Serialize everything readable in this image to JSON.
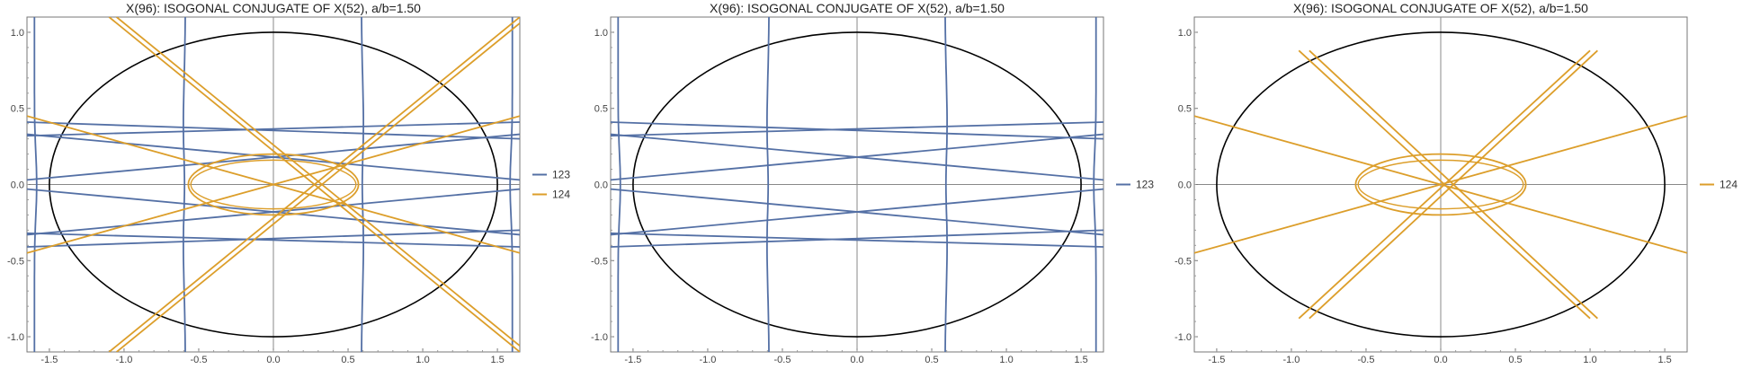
{
  "page": {
    "background": "#ffffff"
  },
  "colors": {
    "c123": "#5470a5",
    "c124": "#dc9e2a",
    "ellipse": "#000000",
    "axis": "#888888"
  },
  "chart_data": [
    {
      "type": "line",
      "title": "X(96): ISOGONAL CONJUGATE OF X(52), a/b=1.50",
      "xlabel": "",
      "ylabel": "",
      "xlim": [
        -1.65,
        1.65
      ],
      "ylim": [
        -1.1,
        1.1
      ],
      "xticks": [
        "-1.5",
        "-1.0",
        "-0.5",
        "0.0",
        "0.5",
        "1.0",
        "1.5"
      ],
      "yticks": [
        "-1.0",
        "-0.5",
        "0.0",
        "0.5",
        "1.0"
      ],
      "grid": false,
      "legend": [
        "123",
        "124"
      ],
      "legend_position": "right",
      "circumellipse": {
        "a": 1.5,
        "b": 1.0
      },
      "series": [
        {
          "name": "123",
          "color": "#5470a5",
          "vertical_curves": [
            [
              -1.6,
              0.0
            ],
            [
              -0.6,
              -0.01
            ],
            [
              0.6,
              0.01
            ],
            [
              1.6,
              0.0
            ]
          ],
          "lines": [
            [
              [
                -1.65,
                0.41
              ],
              [
                1.65,
                0.3
              ]
            ],
            [
              [
                -1.65,
                0.32
              ],
              [
                1.65,
                0.41
              ]
            ],
            [
              [
                -1.65,
                0.03
              ],
              [
                1.65,
                0.33
              ]
            ],
            [
              [
                -1.65,
                0.33
              ],
              [
                1.65,
                0.03
              ]
            ],
            [
              [
                -1.65,
                -0.41
              ],
              [
                1.65,
                -0.3
              ]
            ],
            [
              [
                -1.65,
                -0.32
              ],
              [
                1.65,
                -0.41
              ]
            ],
            [
              [
                -1.65,
                -0.03
              ],
              [
                1.65,
                -0.33
              ]
            ],
            [
              [
                -1.65,
                -0.33
              ],
              [
                1.65,
                -0.03
              ]
            ]
          ]
        },
        {
          "name": "124",
          "color": "#dc9e2a",
          "inner_ellipse": {
            "cx": 0.0,
            "cy": 0.0,
            "rx": 0.57,
            "ry": 0.2
          },
          "lines": [
            [
              [
                -1.1,
                -1.1
              ],
              [
                1.65,
                1.1
              ]
            ],
            [
              [
                -1.05,
                -1.1
              ],
              [
                1.65,
                1.06
              ]
            ],
            [
              [
                -1.1,
                1.1
              ],
              [
                1.65,
                -1.1
              ]
            ],
            [
              [
                -1.05,
                1.1
              ],
              [
                1.65,
                -1.06
              ]
            ],
            [
              [
                -1.65,
                0.45
              ],
              [
                1.65,
                -0.45
              ]
            ],
            [
              [
                -1.65,
                -0.45
              ],
              [
                1.65,
                0.45
              ]
            ]
          ]
        }
      ]
    },
    {
      "type": "line",
      "title": "X(96): ISOGONAL CONJUGATE OF X(52), a/b=1.50",
      "xlabel": "",
      "ylabel": "",
      "xlim": [
        -1.65,
        1.65
      ],
      "ylim": [
        -1.1,
        1.1
      ],
      "xticks": [
        "-1.5",
        "-1.0",
        "-0.5",
        "0.0",
        "0.5",
        "1.0",
        "1.5"
      ],
      "yticks": [
        "-1.0",
        "-0.5",
        "0.0",
        "0.5",
        "1.0"
      ],
      "grid": false,
      "legend": [
        "123"
      ],
      "legend_position": "right",
      "circumellipse": {
        "a": 1.5,
        "b": 1.0
      },
      "series": [
        {
          "name": "123",
          "color": "#5470a5",
          "vertical_curves": [
            [
              -1.6,
              0.0
            ],
            [
              -0.6,
              -0.01
            ],
            [
              0.6,
              0.01
            ],
            [
              1.6,
              0.0
            ]
          ],
          "lines": [
            [
              [
                -1.65,
                0.41
              ],
              [
                1.65,
                0.3
              ]
            ],
            [
              [
                -1.65,
                0.32
              ],
              [
                1.65,
                0.41
              ]
            ],
            [
              [
                -1.65,
                0.03
              ],
              [
                1.65,
                0.33
              ]
            ],
            [
              [
                -1.65,
                0.33
              ],
              [
                1.65,
                0.03
              ]
            ],
            [
              [
                -1.65,
                -0.41
              ],
              [
                1.65,
                -0.3
              ]
            ],
            [
              [
                -1.65,
                -0.32
              ],
              [
                1.65,
                -0.41
              ]
            ],
            [
              [
                -1.65,
                -0.03
              ],
              [
                1.65,
                -0.33
              ]
            ],
            [
              [
                -1.65,
                -0.33
              ],
              [
                1.65,
                -0.03
              ]
            ]
          ]
        }
      ]
    },
    {
      "type": "line",
      "title": "X(96): ISOGONAL CONJUGATE OF X(52), a/b=1.50",
      "xlabel": "",
      "ylabel": "",
      "xlim": [
        -1.65,
        1.65
      ],
      "ylim": [
        -1.1,
        1.1
      ],
      "xticks": [
        "-1.5",
        "-1.0",
        "-0.5",
        "0.0",
        "0.5",
        "1.0",
        "1.5"
      ],
      "yticks": [
        "-1.0",
        "-0.5",
        "0.0",
        "0.5",
        "1.0"
      ],
      "grid": false,
      "legend": [
        "124"
      ],
      "legend_position": "right",
      "circumellipse": {
        "a": 1.5,
        "b": 1.0
      },
      "series": [
        {
          "name": "124",
          "color": "#dc9e2a",
          "inner_ellipse": {
            "cx": 0.0,
            "cy": 0.0,
            "rx": 0.57,
            "ry": 0.2
          },
          "lines": [
            [
              [
                -0.95,
                -0.88
              ],
              [
                1.0,
                0.88
              ]
            ],
            [
              [
                -0.88,
                -0.88
              ],
              [
                1.05,
                0.88
              ]
            ],
            [
              [
                -0.95,
                0.88
              ],
              [
                1.0,
                -0.88
              ]
            ],
            [
              [
                -0.88,
                0.88
              ],
              [
                1.05,
                -0.88
              ]
            ],
            [
              [
                -1.65,
                0.45
              ],
              [
                1.65,
                -0.45
              ]
            ],
            [
              [
                -1.65,
                -0.45
              ],
              [
                1.65,
                0.45
              ]
            ]
          ]
        }
      ]
    }
  ]
}
